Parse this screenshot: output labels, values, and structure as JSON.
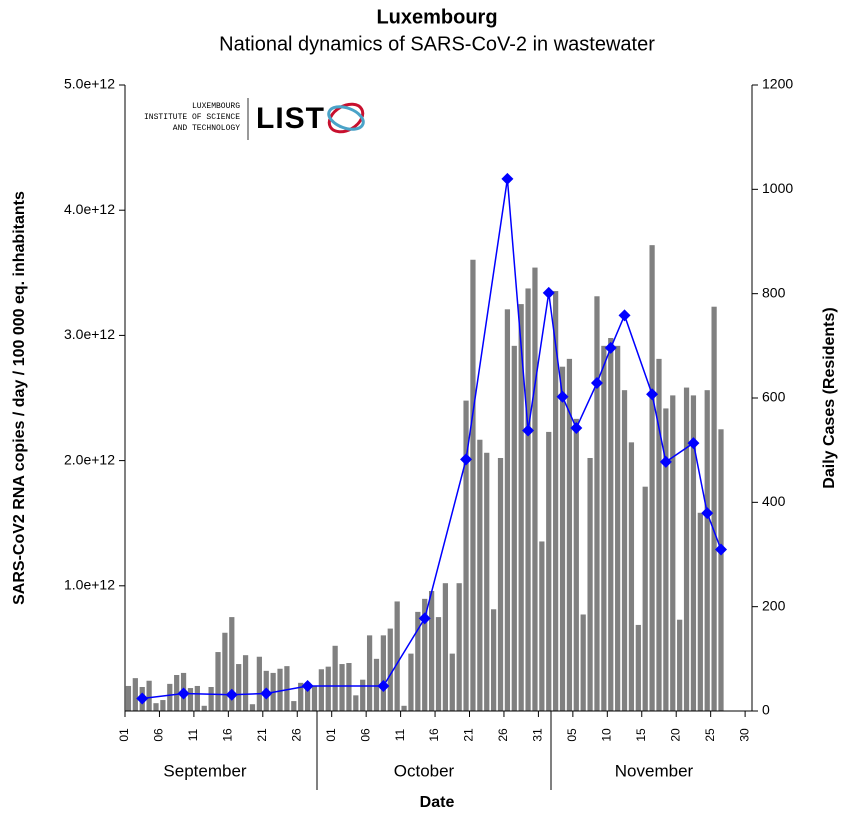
{
  "chart_data": {
    "type": "bar-line",
    "title": "Luxembourg",
    "subtitle": "National dynamics of SARS-CoV-2 in wastewater",
    "xlabel": "Date",
    "ylabel": "SARS-CoV2 RNA copies / day  / 100 000 eq. inhabitants",
    "y2label": "Daily Cases (Residents)",
    "logo": {
      "lines": [
        "LUXEMBOURG",
        "INSTITUTE OF SCIENCE",
        "AND TECHNOLOGY"
      ],
      "name": "LIST"
    },
    "months": [
      "September",
      "October",
      "November"
    ],
    "xlim": [
      1,
      92
    ],
    "xticks": [
      {
        "value": 1,
        "label": "01"
      },
      {
        "value": 6,
        "label": "06"
      },
      11,
      16,
      21,
      26,
      {
        "value": 31,
        "label": "01"
      },
      {
        "value": 36,
        "label": "06"
      },
      {
        "value": 41,
        "label": "11"
      },
      {
        "value": 46,
        "label": "16"
      },
      {
        "value": 51,
        "label": "21"
      },
      {
        "value": 56,
        "label": "26"
      },
      {
        "value": 61,
        "label": "31"
      },
      {
        "value": 66,
        "label": "05"
      },
      {
        "value": 71,
        "label": "10"
      },
      {
        "value": 76,
        "label": "15"
      },
      {
        "value": 81,
        "label": "20"
      },
      {
        "value": 86,
        "label": "25"
      },
      {
        "value": 91,
        "label": "30"
      }
    ],
    "ylim": [
      0,
      5000000000000
    ],
    "yticks": [
      {
        "value": 1000000000000,
        "label": "1.0e+12"
      },
      {
        "value": 2000000000000,
        "label": "2.0e+12"
      },
      {
        "value": 3000000000000,
        "label": "3.0e+12"
      },
      {
        "value": 4000000000000,
        "label": "4.0e+12"
      },
      {
        "value": 5000000000000,
        "label": "5.0e+12"
      }
    ],
    "y2lim": [
      0,
      1200
    ],
    "y2ticks": [
      0,
      200,
      400,
      600,
      800,
      1000,
      1200
    ],
    "series": [
      {
        "type": "bar",
        "axis": "y2",
        "color": "#808080",
        "x": [
          1,
          2,
          3,
          4,
          5,
          6,
          7,
          8,
          9,
          10,
          11,
          12,
          13,
          14,
          15,
          16,
          17,
          18,
          19,
          20,
          21,
          22,
          23,
          24,
          25,
          26,
          27,
          28,
          29,
          30,
          31,
          32,
          33,
          34,
          35,
          36,
          37,
          38,
          39,
          40,
          41,
          42,
          43,
          44,
          45,
          46,
          47,
          48,
          49,
          50,
          51,
          52,
          53,
          54,
          55,
          56,
          57,
          58,
          59,
          60,
          61,
          62,
          63,
          64,
          65,
          66,
          67,
          68,
          69,
          70,
          71,
          72,
          73,
          74,
          75,
          76,
          77,
          78,
          79,
          80,
          81,
          82,
          83,
          84,
          85,
          86,
          87
        ],
        "values": [
          48,
          63,
          46,
          58,
          15,
          21,
          52,
          69,
          73,
          44,
          48,
          10,
          46,
          113,
          150,
          180,
          90,
          107,
          13,
          104,
          77,
          73,
          81,
          86,
          19,
          54,
          55,
          48,
          80,
          85,
          125,
          90,
          92,
          30,
          60,
          145,
          100,
          145,
          158,
          210,
          10,
          110,
          190,
          215,
          230,
          180,
          245,
          110,
          245,
          595,
          865,
          520,
          495,
          195,
          485,
          770,
          700,
          780,
          810,
          850,
          325,
          535,
          805,
          660,
          675,
          560,
          185,
          485,
          795,
          700,
          715,
          700,
          615,
          515,
          165,
          430,
          893,
          675,
          580,
          605,
          175,
          620,
          605,
          380,
          615,
          775,
          540
        ]
      },
      {
        "type": "line",
        "color": "#0000ff",
        "x": [
          3,
          9,
          16,
          21,
          27,
          38,
          44,
          50,
          56,
          59,
          62,
          64,
          66,
          69,
          71,
          73,
          77,
          79,
          83,
          85,
          87
        ],
        "values": [
          100000000000,
          140000000000,
          130000000000,
          140000000000,
          200000000000,
          200000000000,
          740000000000,
          2010000000000,
          4250000000000,
          2240000000000,
          3340000000000,
          2510000000000,
          2260000000000,
          2620000000000,
          2900000000000,
          3160000000000,
          2530000000000,
          1990000000000,
          2140000000000,
          1580000000000,
          1290000000000
        ]
      }
    ]
  }
}
